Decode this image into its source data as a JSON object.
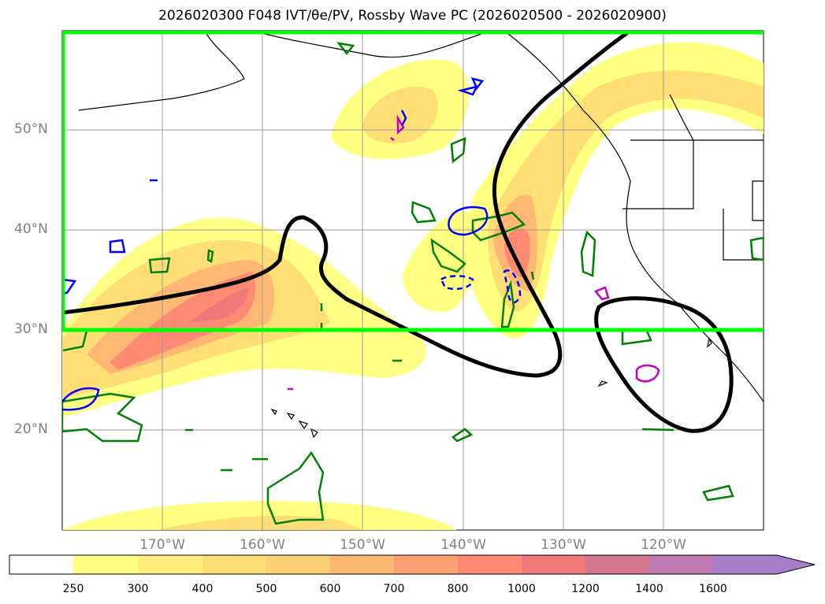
{
  "title": "2026020300 F048 IVT/θe/PV, Rossby Wave PC (2026020500 - 2026020900)",
  "lat_labels": [
    "50°N",
    "40°N",
    "30°N",
    "20°N"
  ],
  "lon_labels": [
    "170°W",
    "160°W",
    "150°W",
    "140°W",
    "130°W",
    "120°W"
  ],
  "colorbar": {
    "levels": [
      "250",
      "300",
      "400",
      "500",
      "600",
      "700",
      "800",
      "1000",
      "1200",
      "1400",
      "1600"
    ],
    "colors": [
      "#ffffff",
      "#ffff80",
      "#ffef7a",
      "#ffde75",
      "#ffcf73",
      "#ffb873",
      "#ffa073",
      "#ff8a73",
      "#f07878",
      "#d47890",
      "#c07ab4",
      "#a87ec8"
    ],
    "extend": "max"
  },
  "region_box_color": "#00ff00",
  "colors": {
    "pc_contour": "#000000",
    "pv_contour": "#008000",
    "theta_contour": "#0000ff",
    "magenta_contour": "#c000c0",
    "coastline": "#000000"
  }
}
